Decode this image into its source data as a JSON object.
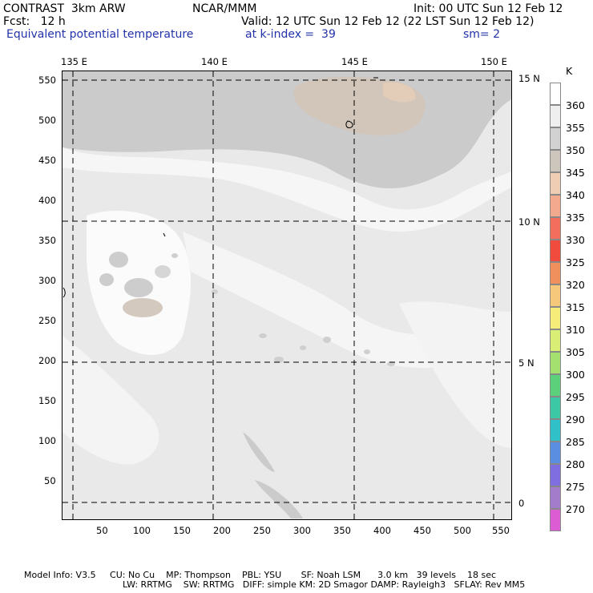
{
  "header": {
    "line1_left": "CONTRAST  3km ARW",
    "line1_mid": "NCAR/MMM",
    "line1_right": "Init: 00 UTC Sun 12 Feb 12",
    "line2_left": "Fcst:   12 h",
    "line2_right": "Valid: 12 UTC Sun 12 Feb 12 (22 LST Sun 12 Feb 12)",
    "line3_left": "Equivalent potential temperature",
    "line3_mid": "at k-index =  39",
    "line3_right": "sm= 2"
  },
  "map": {
    "top_lon_labels": [
      "135 E",
      "140 E",
      "145 E",
      "150 E"
    ],
    "right_lat_labels": [
      "15 N",
      "10 N",
      "5 N",
      "0"
    ],
    "left_y_ticks": [
      "550",
      "500",
      "450",
      "400",
      "350",
      "300",
      "250",
      "200",
      "150",
      "100",
      "50"
    ],
    "bottom_x_ticks": [
      "50",
      "100",
      "150",
      "200",
      "250",
      "300",
      "350",
      "400",
      "450",
      "500",
      "550"
    ]
  },
  "legend": {
    "unit": "K",
    "levels": [
      "360",
      "355",
      "350",
      "345",
      "340",
      "335",
      "330",
      "325",
      "320",
      "315",
      "310",
      "305",
      "300",
      "295",
      "290",
      "285",
      "280",
      "275",
      "270"
    ],
    "colors": [
      "#ffffff",
      "#efefef",
      "#d2d2d2",
      "#cdc6bd",
      "#efccb4",
      "#f3a98e",
      "#f36e5c",
      "#f04b3c",
      "#f0905c",
      "#f5c87c",
      "#f5ec7a",
      "#d8ee74",
      "#a4e070",
      "#5cd07a",
      "#3cc8a4",
      "#30c0c8",
      "#5a8ee0",
      "#7e6ee0",
      "#a47ccc",
      "#dc5cd4"
    ]
  },
  "footer": {
    "line1": "Model Info: V3.5     CU: No Cu    MP: Thompson    PBL: YSU       SF: Noah LSM      3.0 km   39 levels    18 sec",
    "line2": "LW: RRTMG    SW: RRTMG   DIFF: simple KM: 2D Smagor DAMP: Rayleigh3   SFLAY: Rev MM5"
  }
}
